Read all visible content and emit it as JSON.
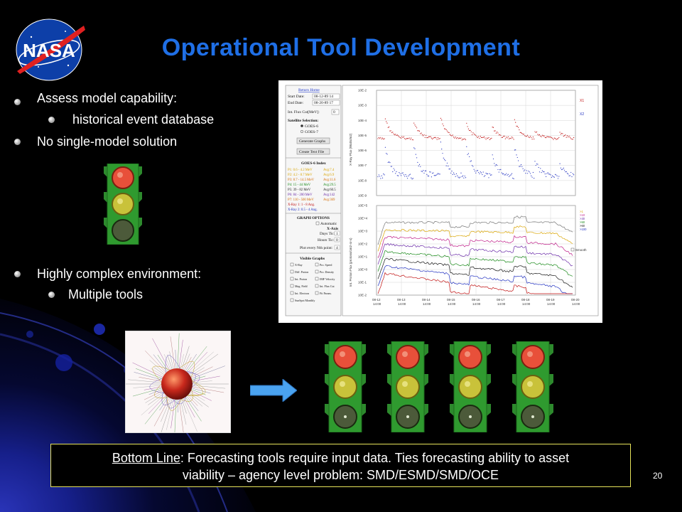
{
  "slide": {
    "title": "Operational Tool Development",
    "page_number": "20"
  },
  "bullets": [
    {
      "text": "Assess model capability:",
      "level": 1
    },
    {
      "text": "historical event database",
      "level": 2
    },
    {
      "text": "No single-model solution",
      "level": 1
    },
    {
      "text": "Highly complex environment:",
      "level": 1
    },
    {
      "text": "Multiple tools",
      "level": 2
    }
  ],
  "logo": {
    "text": "NASA"
  },
  "panel": {
    "links": {
      "return_home": "Return Home"
    },
    "start_date_label": "Start Date:",
    "start_date_value": "08-12-89 14",
    "end_date_label": "End Date:",
    "end_date_value": "08-20-89 17",
    "int_flux_label": "Int. Flux Cut[MeV]:",
    "int_flux_value": "0",
    "satellite_label": "Satellite Selection:",
    "sat_options": [
      "GOES-6",
      "GOES-7"
    ],
    "generate_button": "Generate Graphs",
    "text_file_button": "Create Text File",
    "index_title": "GOES-6 Index",
    "index_rows": [
      {
        "label": "P1: 0.6 - 4.2 MeV",
        "avg": "Avg:7.4",
        "color": "#d9a400"
      },
      {
        "label": "P2: 4.2 - 8.7 MeV",
        "avg": "Avg:6.9",
        "color": "#d9a400"
      },
      {
        "label": "P3: 8.7 - 14.5 MeV",
        "avg": "Avg:11.6",
        "color": "#d46a00"
      },
      {
        "label": "P4: 15 - 44 MeV",
        "avg": "Avg:29.5",
        "color": "#1a8a1a"
      },
      {
        "label": "P5: 39 - 82 MeV",
        "avg": "Avg:60.5",
        "color": "#1a1a1a"
      },
      {
        "label": "P6: 84 - 200 MeV",
        "avg": "Avg:142",
        "color": "#6a2aa8"
      },
      {
        "label": "P7: 110 - 500 MeV",
        "avg": "Avg:369",
        "color": "#d46a00"
      },
      {
        "label": "X-Ray 1: 1 - 8 Ang.",
        "avg": "",
        "color": "#c01010"
      },
      {
        "label": "X-Ray 2: 0.5 - 4 Ang.",
        "avg": "",
        "color": "#2030c0"
      }
    ],
    "graph_options_title": "GRAPH OPTIONS",
    "automatic_label": "Automatic",
    "x_axis_label": "X-Axis",
    "days_tic_label": "Days Tic:",
    "days_tic_value": "1",
    "hours_tic_label": "Hours Tic:",
    "hours_tic_value": "0",
    "plot_every_label": "Plot every Nth point:",
    "plot_every_value": "4",
    "visible_graphs_title": "Visible Graphs",
    "visible_graphs": [
      "X-Ray",
      "Pro. Speed",
      "Diff. Proton",
      "Pro. Density",
      "Int. Proton",
      "IMF Velocity",
      "Mag. Field",
      "Int. Flux Cut",
      "Int. Electron",
      "Fit Param.",
      "SunSpot Monthly"
    ],
    "top_legend": [
      "X1",
      "X2"
    ],
    "bottom_legend": [
      ">1",
      ">10",
      ">30",
      ">50",
      ">60",
      ">100"
    ],
    "top_y_ticks": [
      "10E-2",
      "10E-3",
      "10E-4",
      "10E-5",
      "10E-6",
      "10E-7",
      "10E-8",
      "10E-9"
    ],
    "bottom_y_ticks": [
      "10E+5",
      "10E+4",
      "10E+3",
      "10E+2",
      "10E+1",
      "10E+0",
      "10E-1",
      "10E-2"
    ],
    "x_ticks": [
      "08-12\n14:00",
      "08-13\n14:00",
      "08-14\n14:00",
      "08-15\n14:00",
      "08-16\n14:00",
      "08-17\n14:00",
      "08-18\n14:00",
      "08-19\n14:00",
      "08-20\n14:00"
    ],
    "top_ylabel": "X-Ray Flux (Watts/m2)",
    "bottom_ylabel": "Int. Proton Flux (protons/cm2-sr-s)",
    "smooth_label": "Smooth"
  },
  "bottom_line": {
    "label": "Bottom Line",
    "text_1": ": Forecasting tools require input data.  Ties forecasting ability to asset",
    "text_2": "viability – agency level problem:  SMD/ESMD/SMD/OCE"
  },
  "colors": {
    "title": "#1f6fe6",
    "box_border": "#e6e35a",
    "light_housing": "#2f9a2f",
    "red_lamp": "#e8503a",
    "yellow_lamp": "#c9c23a",
    "green_lamp": "#4c5a3a",
    "arrow": "#4aa3f0"
  }
}
